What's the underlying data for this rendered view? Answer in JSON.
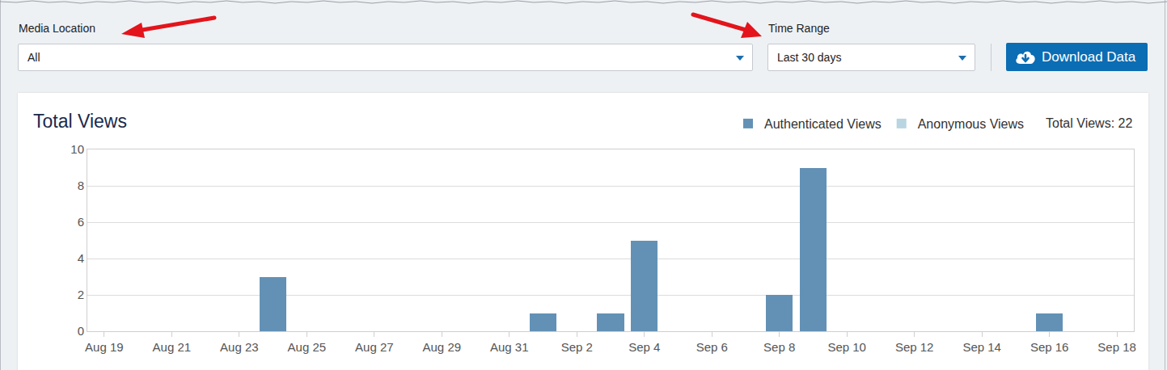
{
  "controls": {
    "media_location": {
      "label": "Media Location",
      "value": "All"
    },
    "time_range": {
      "label": "Time Range",
      "value": "Last 30 days"
    },
    "download_button": "Download Data"
  },
  "chart_data": {
    "type": "bar",
    "title": "Total Views",
    "annotations": [
      "Total Views: 22"
    ],
    "categories": [
      "Aug 19",
      null,
      "Aug 21",
      null,
      "Aug 23",
      null,
      "Aug 25",
      null,
      "Aug 27",
      null,
      "Aug 29",
      null,
      "Aug 31",
      null,
      "Sep 2",
      null,
      "Sep 4",
      null,
      "Sep 6",
      null,
      "Sep 8",
      null,
      "Sep 10",
      null,
      "Sep 12",
      null,
      "Sep 14",
      null,
      "Sep 16",
      null,
      "Sep 18"
    ],
    "series": [
      {
        "name": "Authenticated Views",
        "color": "#6391b5",
        "values": [
          0,
          0,
          0,
          0,
          0,
          3,
          0,
          0,
          0,
          0,
          0,
          0,
          0,
          1,
          0,
          1,
          5,
          0,
          0,
          0,
          2,
          9,
          0,
          0,
          0,
          0,
          0,
          0,
          1,
          0,
          0
        ]
      },
      {
        "name": "Anonymous Views",
        "color": "#b9d5e1",
        "values": [
          0,
          0,
          0,
          0,
          0,
          0,
          0,
          0,
          0,
          0,
          0,
          0,
          0,
          0,
          0,
          0,
          0,
          0,
          0,
          0,
          0,
          0,
          0,
          0,
          0,
          0,
          0,
          0,
          0,
          0,
          0
        ]
      }
    ],
    "stacked": true,
    "ylim": [
      0,
      10
    ],
    "yticks": [
      0,
      2,
      4,
      6,
      8,
      10
    ],
    "grid": true,
    "legend": "top right"
  }
}
